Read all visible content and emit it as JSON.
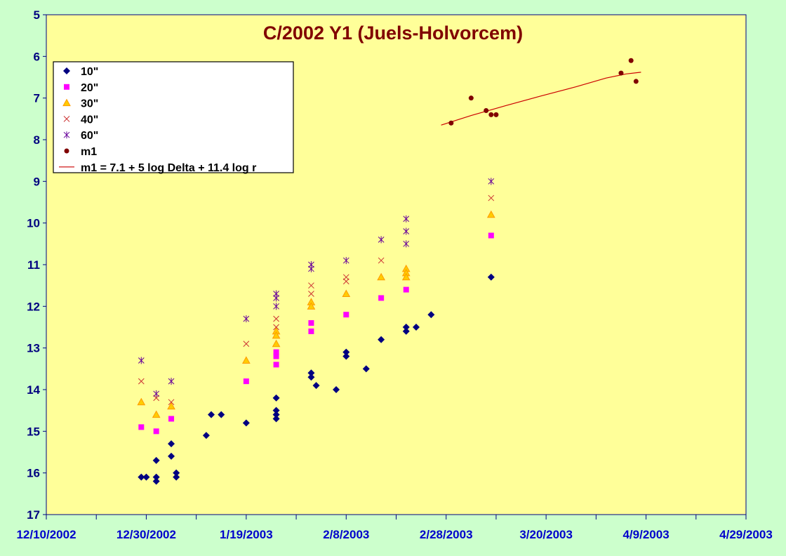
{
  "chart_data": {
    "type": "scatter",
    "title": "C/2002 Y1 (Juels-Holvorcem)",
    "xlabel": "",
    "ylabel": "",
    "x_ticks": [
      "12/10/2002",
      "12/30/2002",
      "1/19/2003",
      "2/8/2003",
      "2/28/2003",
      "3/20/2003",
      "4/9/2003",
      "4/29/2003"
    ],
    "xlim": [
      "2002-12-10",
      "2003-04-29"
    ],
    "y_ticks": [
      5,
      6,
      7,
      8,
      9,
      10,
      11,
      12,
      13,
      14,
      15,
      16,
      17
    ],
    "ylim": [
      5,
      17
    ],
    "y_inverted": true,
    "grid": false,
    "legend_position": "top-left",
    "colors": {
      "background": "#ccffcc",
      "plot_area": "#ffff99",
      "axis": "#000080"
    },
    "series": [
      {
        "name": "10\"",
        "marker": "diamond",
        "color": "#000080",
        "points": [
          [
            "2002-12-29",
            16.1
          ],
          [
            "2002-12-30",
            16.1
          ],
          [
            "2003-01-01",
            16.1
          ],
          [
            "2003-01-01",
            16.2
          ],
          [
            "2003-01-01",
            15.7
          ],
          [
            "2003-01-04",
            15.6
          ],
          [
            "2003-01-04",
            15.3
          ],
          [
            "2003-01-05",
            16.0
          ],
          [
            "2003-01-05",
            16.1
          ],
          [
            "2003-01-11",
            15.1
          ],
          [
            "2003-01-12",
            14.6
          ],
          [
            "2003-01-14",
            14.6
          ],
          [
            "2003-01-19",
            14.8
          ],
          [
            "2003-01-25",
            14.2
          ],
          [
            "2003-01-25",
            14.5
          ],
          [
            "2003-01-25",
            14.6
          ],
          [
            "2003-01-25",
            14.7
          ],
          [
            "2003-02-01",
            13.6
          ],
          [
            "2003-02-01",
            13.7
          ],
          [
            "2003-02-02",
            13.9
          ],
          [
            "2003-02-06",
            14.0
          ],
          [
            "2003-02-08",
            13.1
          ],
          [
            "2003-02-08",
            13.2
          ],
          [
            "2003-02-12",
            13.5
          ],
          [
            "2003-02-15",
            12.8
          ],
          [
            "2003-02-20",
            12.5
          ],
          [
            "2003-02-20",
            12.6
          ],
          [
            "2003-02-22",
            12.5
          ],
          [
            "2003-02-25",
            12.2
          ],
          [
            "2003-03-09",
            11.3
          ]
        ]
      },
      {
        "name": "20\"",
        "marker": "square",
        "color": "#ff00ff",
        "points": [
          [
            "2002-12-29",
            14.9
          ],
          [
            "2003-01-01",
            15.0
          ],
          [
            "2003-01-04",
            14.7
          ],
          [
            "2003-01-19",
            13.8
          ],
          [
            "2003-01-25",
            13.1
          ],
          [
            "2003-01-25",
            13.2
          ],
          [
            "2003-01-25",
            13.4
          ],
          [
            "2003-02-01",
            12.4
          ],
          [
            "2003-02-01",
            12.6
          ],
          [
            "2003-02-08",
            12.2
          ],
          [
            "2003-02-15",
            11.8
          ],
          [
            "2003-02-20",
            11.6
          ],
          [
            "2003-03-09",
            10.3
          ]
        ]
      },
      {
        "name": "30\"",
        "marker": "triangle",
        "color": "#ff9900",
        "points": [
          [
            "2002-12-29",
            14.3
          ],
          [
            "2003-01-01",
            14.6
          ],
          [
            "2003-01-04",
            14.4
          ],
          [
            "2003-01-19",
            13.3
          ],
          [
            "2003-01-25",
            12.6
          ],
          [
            "2003-01-25",
            12.7
          ],
          [
            "2003-01-25",
            12.9
          ],
          [
            "2003-02-01",
            11.9
          ],
          [
            "2003-02-01",
            12.0
          ],
          [
            "2003-02-08",
            11.7
          ],
          [
            "2003-02-15",
            11.3
          ],
          [
            "2003-02-20",
            11.1
          ],
          [
            "2003-02-20",
            11.2
          ],
          [
            "2003-02-20",
            11.3
          ],
          [
            "2003-03-09",
            9.8
          ]
        ]
      },
      {
        "name": "40\"",
        "marker": "x",
        "color": "#cc3333",
        "points": [
          [
            "2002-12-29",
            13.8
          ],
          [
            "2003-01-01",
            14.2
          ],
          [
            "2003-01-04",
            14.3
          ],
          [
            "2003-01-19",
            12.9
          ],
          [
            "2003-01-25",
            12.3
          ],
          [
            "2003-01-25",
            12.5
          ],
          [
            "2003-02-01",
            11.5
          ],
          [
            "2003-02-01",
            11.7
          ],
          [
            "2003-02-08",
            11.3
          ],
          [
            "2003-02-08",
            11.4
          ],
          [
            "2003-02-15",
            10.9
          ],
          [
            "2003-03-09",
            9.4
          ]
        ]
      },
      {
        "name": "60\"",
        "marker": "star",
        "color": "#660099",
        "points": [
          [
            "2002-12-29",
            13.3
          ],
          [
            "2003-01-01",
            14.1
          ],
          [
            "2003-01-04",
            13.8
          ],
          [
            "2003-01-19",
            12.3
          ],
          [
            "2003-01-25",
            11.7
          ],
          [
            "2003-01-25",
            11.8
          ],
          [
            "2003-01-25",
            12.0
          ],
          [
            "2003-02-01",
            11.0
          ],
          [
            "2003-02-01",
            11.1
          ],
          [
            "2003-02-08",
            10.9
          ],
          [
            "2003-02-15",
            10.4
          ],
          [
            "2003-02-20",
            9.9
          ],
          [
            "2003-02-20",
            10.2
          ],
          [
            "2003-02-20",
            10.5
          ],
          [
            "2003-03-09",
            9.0
          ]
        ]
      },
      {
        "name": "m1",
        "marker": "circle",
        "color": "#800000",
        "points": [
          [
            "2003-03-01",
            7.6
          ],
          [
            "2003-03-05",
            7.0
          ],
          [
            "2003-03-08",
            7.3
          ],
          [
            "2003-03-09",
            7.4
          ],
          [
            "2003-03-10",
            7.4
          ],
          [
            "2003-04-04",
            6.4
          ],
          [
            "2003-04-06",
            6.1
          ],
          [
            "2003-04-07",
            6.6
          ]
        ]
      }
    ],
    "fit_line": {
      "name": "m1 = 7.1 + 5 log Delta + 11.4 log r",
      "color": "#cc0000",
      "points": [
        [
          "2003-02-27",
          7.65
        ],
        [
          "2003-03-05",
          7.42
        ],
        [
          "2003-03-12",
          7.18
        ],
        [
          "2003-03-19",
          6.95
        ],
        [
          "2003-03-26",
          6.73
        ],
        [
          "2003-04-01",
          6.52
        ],
        [
          "2003-04-05",
          6.42
        ],
        [
          "2003-04-08",
          6.38
        ]
      ]
    }
  }
}
